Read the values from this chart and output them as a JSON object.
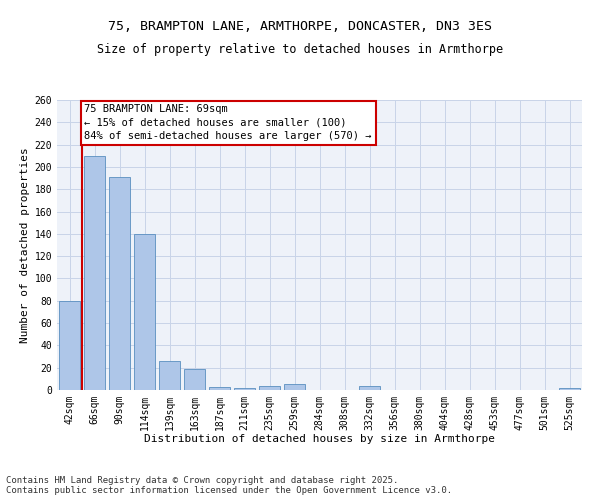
{
  "title_line1": "75, BRAMPTON LANE, ARMTHORPE, DONCASTER, DN3 3ES",
  "title_line2": "Size of property relative to detached houses in Armthorpe",
  "xlabel": "Distribution of detached houses by size in Armthorpe",
  "ylabel": "Number of detached properties",
  "categories": [
    "42sqm",
    "66sqm",
    "90sqm",
    "114sqm",
    "139sqm",
    "163sqm",
    "187sqm",
    "211sqm",
    "235sqm",
    "259sqm",
    "284sqm",
    "308sqm",
    "332sqm",
    "356sqm",
    "380sqm",
    "404sqm",
    "428sqm",
    "453sqm",
    "477sqm",
    "501sqm",
    "525sqm"
  ],
  "values": [
    80,
    210,
    191,
    140,
    26,
    19,
    3,
    2,
    4,
    5,
    0,
    0,
    4,
    0,
    0,
    0,
    0,
    0,
    0,
    0,
    2
  ],
  "bar_color": "#aec6e8",
  "bar_edge_color": "#5a8fc0",
  "ylim": [
    0,
    260
  ],
  "yticks": [
    0,
    20,
    40,
    60,
    80,
    100,
    120,
    140,
    160,
    180,
    200,
    220,
    240,
    260
  ],
  "annotation_text": "75 BRAMPTON LANE: 69sqm\n← 15% of detached houses are smaller (100)\n84% of semi-detached houses are larger (570) →",
  "annotation_box_color": "#ffffff",
  "annotation_box_edge": "#cc0000",
  "vline_x_index": 1,
  "vline_color": "#cc0000",
  "background_color": "#eef2f9",
  "grid_color": "#c8d4e8",
  "footer_text": "Contains HM Land Registry data © Crown copyright and database right 2025.\nContains public sector information licensed under the Open Government Licence v3.0.",
  "title_fontsize": 9.5,
  "subtitle_fontsize": 8.5,
  "axis_label_fontsize": 8,
  "tick_fontsize": 7,
  "annotation_fontsize": 7.5,
  "footer_fontsize": 6.5
}
